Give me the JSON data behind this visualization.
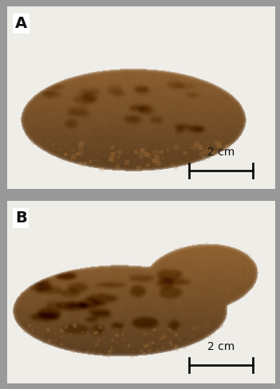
{
  "fig_width": 3.51,
  "fig_height": 4.88,
  "dpi": 100,
  "panel_A_label": "A",
  "panel_B_label": "B",
  "scale_bar_text": "2 cm",
  "label_fontsize": 14,
  "scale_fontsize": 10,
  "bg_color": "#f0eeeb",
  "border_color": "#aaaaaa",
  "label_color": "#111111",
  "scale_bar_color": "#111111",
  "powder_r": 140,
  "powder_g": 95,
  "powder_b": 48,
  "powder_dark_r": 90,
  "powder_dark_g": 58,
  "powder_dark_b": 22,
  "powder_light_r": 175,
  "powder_light_g": 130,
  "powder_light_b": 72
}
